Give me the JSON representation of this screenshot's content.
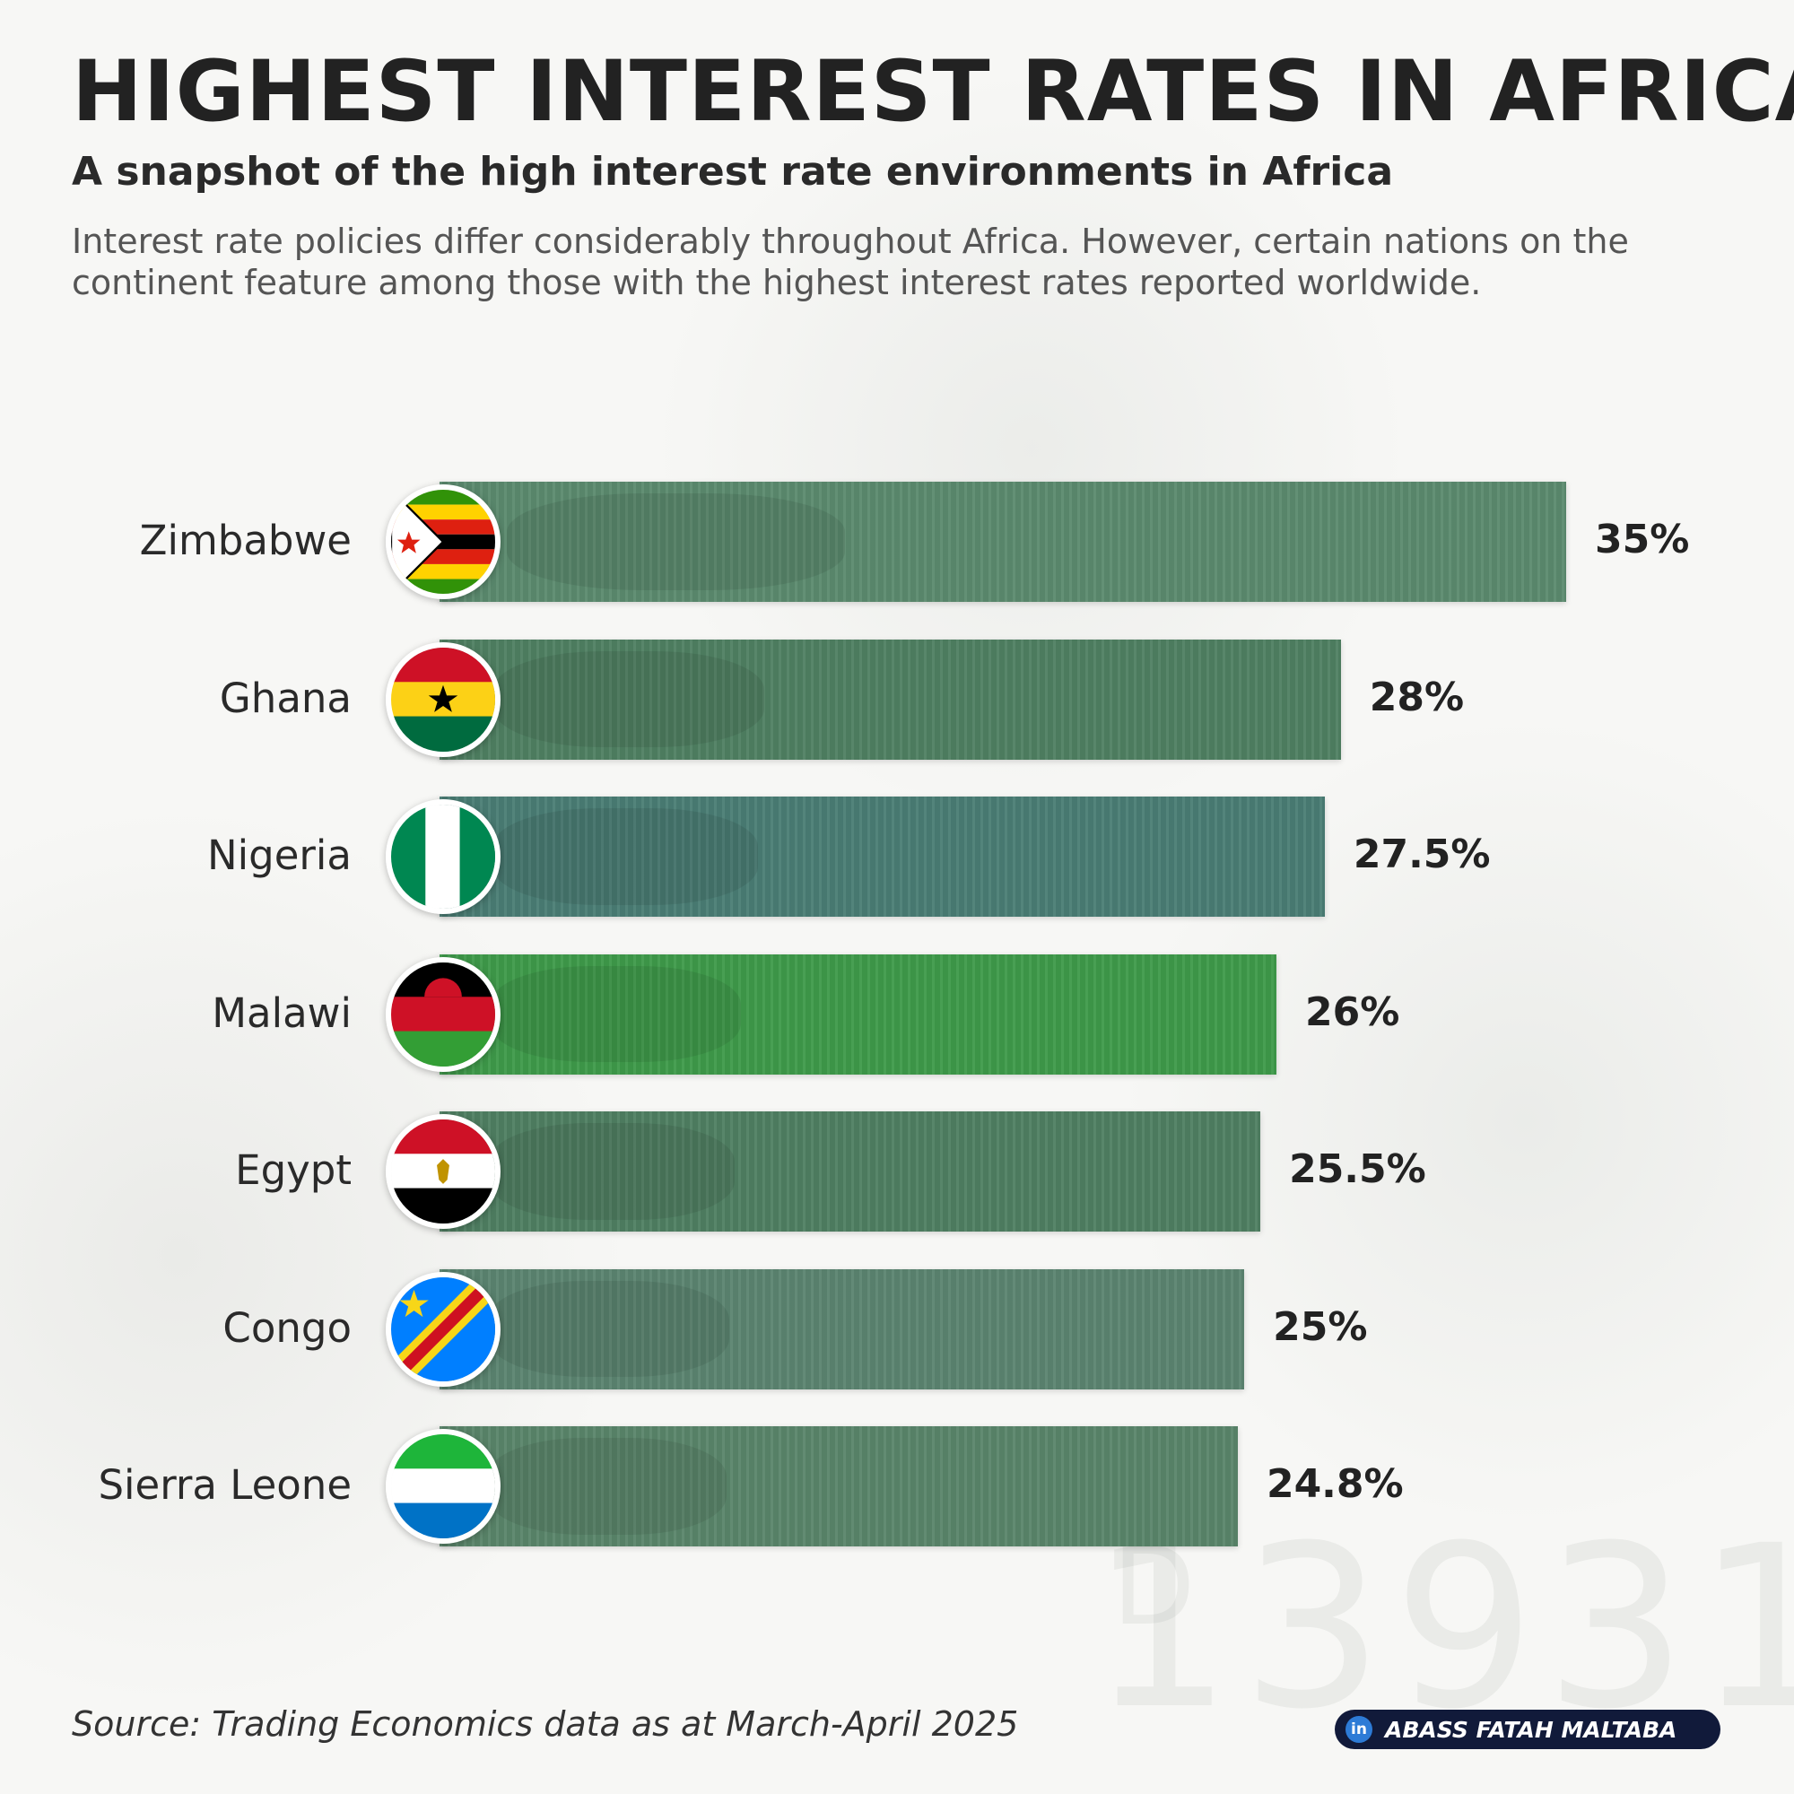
{
  "header": {
    "title": "HIGHEST INTEREST RATES IN AFRICA",
    "subtitle": "A snapshot of the high interest rate environments in Africa",
    "description": "Interest rate policies differ considerably throughout Africa. However, certain nations on the continent feature among those with the highest interest rates reported worldwide."
  },
  "chart_data": {
    "type": "bar",
    "orientation": "horizontal",
    "title": "HIGHEST INTEREST RATES IN AFRICA",
    "xlabel": "",
    "ylabel": "",
    "categories": [
      "Zimbabwe",
      "Ghana",
      "Nigeria",
      "Malawi",
      "Egypt",
      "Congo",
      "Sierra Leone"
    ],
    "values": [
      35,
      28,
      27.5,
      26,
      25.5,
      25,
      24.8
    ],
    "value_labels": [
      "35%",
      "28%",
      "27.5%",
      "26%",
      "25.5%",
      "25%",
      "24.8%"
    ],
    "flags": [
      "zimbabwe-flag-icon",
      "ghana-flag-icon",
      "nigeria-flag-icon",
      "malawi-flag-icon",
      "egypt-flag-icon",
      "congo-flag-icon",
      "sierra-leone-flag-icon"
    ],
    "bar_colors": [
      "#5b8a6e",
      "#4f8062",
      "#4a7d74",
      "#3e9a4a",
      "#4f7f62",
      "#5b8470",
      "#5a856a"
    ],
    "xlim": [
      0,
      35
    ],
    "grid": false
  },
  "footer": {
    "source": "Source: Trading Economics data as at March-April 2025",
    "author": "ABASS FATAH MALTABA",
    "author_icon": "linkedin-icon"
  },
  "background": {
    "watermark_number": "13931",
    "watermark_letter": "D"
  }
}
